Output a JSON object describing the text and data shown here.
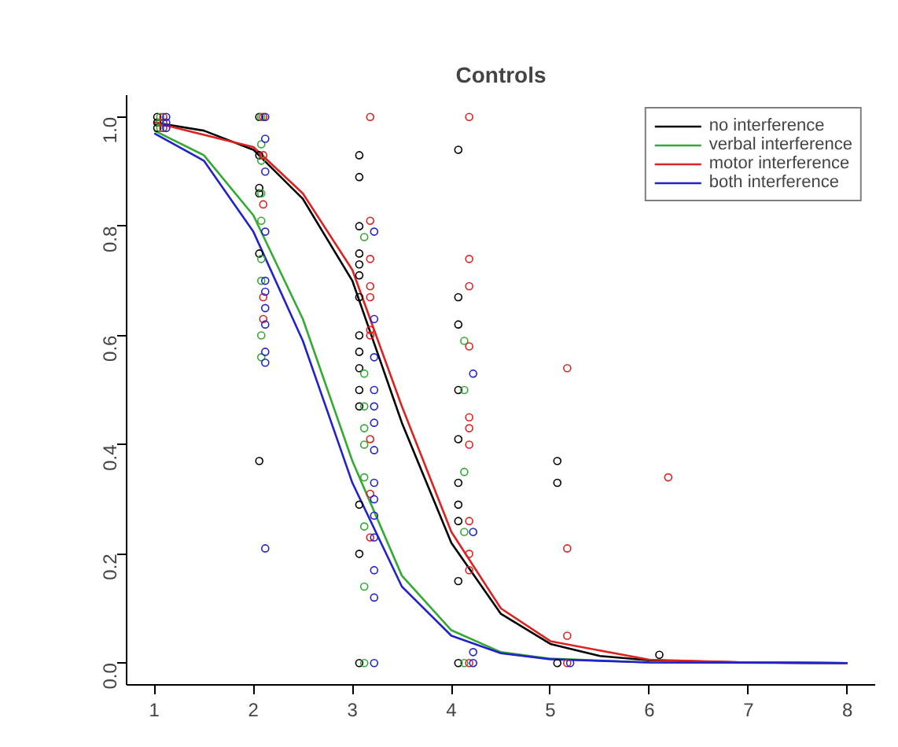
{
  "chart_data": {
    "type": "scatter",
    "title": "Controls",
    "xlim": [
      0.72,
      8.28
    ],
    "ylim": [
      -0.04,
      1.04
    ],
    "xticks": [
      1,
      2,
      3,
      4,
      5,
      6,
      7,
      8
    ],
    "yticks": [
      {
        "value": 0,
        "label": "0.0"
      },
      {
        "value": 0.2,
        "label": "0.2"
      },
      {
        "value": 0.4,
        "label": "0.4"
      },
      {
        "value": 0.6,
        "label": "0.6"
      },
      {
        "value": 0.8,
        "label": "0.8"
      },
      {
        "value": 1,
        "label": "1.0"
      }
    ],
    "grid": false,
    "legend": "top right",
    "marker": "circle",
    "series": [
      {
        "type": "line",
        "name": "no interference",
        "marker": "none",
        "color": "#000000",
        "x": [
          1,
          1.5,
          2,
          2.5,
          3,
          3.25,
          3.5,
          4,
          4.5,
          5,
          5.5,
          6,
          7,
          8
        ],
        "values": [
          0.99,
          0.975,
          0.94,
          0.85,
          0.7,
          0.57,
          0.44,
          0.22,
          0.09,
          0.035,
          0.013,
          0.005,
          0.001,
          0
        ]
      },
      {
        "type": "line",
        "name": "verbal interference",
        "marker": "none",
        "color": "#33aa33",
        "x": [
          1,
          1.5,
          2,
          2.5,
          3,
          3.5,
          4,
          4.5,
          5,
          6,
          8
        ],
        "values": [
          0.975,
          0.93,
          0.82,
          0.63,
          0.37,
          0.16,
          0.06,
          0.02,
          0.008,
          0.001,
          0
        ]
      },
      {
        "type": "line",
        "name": "motor interference",
        "marker": "none",
        "color": "#dd2222",
        "x": [
          1,
          2,
          2.5,
          3,
          3.5,
          4,
          4.5,
          5,
          6,
          7,
          8
        ],
        "values": [
          0.99,
          0.945,
          0.86,
          0.72,
          0.47,
          0.24,
          0.1,
          0.04,
          0.006,
          0.001,
          0
        ]
      },
      {
        "type": "line",
        "name": "both interference",
        "marker": "none",
        "color": "#2222cc",
        "x": [
          1,
          1.5,
          2,
          2.5,
          3,
          3.5,
          4,
          4.5,
          5,
          6,
          8
        ],
        "values": [
          0.97,
          0.92,
          0.79,
          0.59,
          0.33,
          0.14,
          0.05,
          0.018,
          0.007,
          0.001,
          0
        ]
      },
      {
        "color": "#000000",
        "x": [
          1.03,
          1.03,
          1.03,
          2.06,
          2.06,
          2.06,
          2.06,
          2.06,
          2.06,
          3.07,
          3.07,
          3.07,
          3.07,
          3.07,
          3.07,
          3.07,
          3.07,
          3.07,
          3.07,
          3.07,
          3.07,
          3.07,
          3.07,
          3.07,
          4.07,
          4.07,
          4.07,
          4.07,
          4.07,
          4.07,
          4.07,
          4.07,
          4.07,
          4.07,
          5.07,
          5.07,
          5.07,
          6.1
        ],
        "values": [
          1.0,
          0.99,
          0.98,
          1.0,
          0.93,
          0.87,
          0.86,
          0.75,
          0.37,
          0.93,
          0.89,
          0.8,
          0.75,
          0.73,
          0.71,
          0.67,
          0.6,
          0.57,
          0.54,
          0.5,
          0.47,
          0.29,
          0.2,
          0,
          0.94,
          0.67,
          0.62,
          0.5,
          0.41,
          0.33,
          0.29,
          0.26,
          0.15,
          0,
          0.37,
          0.33,
          0,
          0.015
        ]
      },
      {
        "color": "#33aa33",
        "x": [
          1.06,
          1.06,
          1.06,
          2.08,
          2.08,
          2.08,
          2.08,
          2.08,
          2.08,
          2.08,
          2.08,
          2.08,
          3.12,
          3.12,
          3.12,
          3.12,
          3.12,
          3.12,
          3.12,
          3.12,
          3.12,
          4.13,
          4.13,
          4.13,
          4.13,
          4.13
        ],
        "values": [
          1.0,
          0.99,
          0.98,
          1.0,
          0.95,
          0.92,
          0.86,
          0.81,
          0.74,
          0.7,
          0.6,
          0.56,
          0.78,
          0.53,
          0.47,
          0.43,
          0.4,
          0.34,
          0.25,
          0.14,
          0,
          0.59,
          0.5,
          0.35,
          0.24,
          0
        ]
      },
      {
        "color": "#dd2222",
        "x": [
          1.09,
          1.09,
          1.09,
          2.1,
          2.1,
          2.1,
          2.1,
          2.1,
          3.18,
          3.18,
          3.18,
          3.18,
          3.18,
          3.18,
          3.18,
          3.18,
          3.18,
          3.18,
          4.18,
          4.18,
          4.18,
          4.18,
          4.18,
          4.18,
          4.18,
          4.18,
          4.18,
          4.18,
          4.18,
          5.17,
          5.17,
          5.17,
          5.17,
          6.19
        ],
        "values": [
          1.0,
          0.99,
          0.98,
          1.0,
          0.93,
          0.84,
          0.67,
          0.63,
          1.0,
          0.81,
          0.74,
          0.69,
          0.67,
          0.61,
          0.6,
          0.41,
          0.31,
          0.23,
          1.0,
          0.74,
          0.69,
          0.58,
          0.45,
          0.43,
          0.4,
          0.26,
          0.2,
          0.17,
          0,
          0.54,
          0.21,
          0.05,
          0,
          0.34
        ]
      },
      {
        "color": "#2222cc",
        "x": [
          1.12,
          1.12,
          1.12,
          2.12,
          2.12,
          2.12,
          2.12,
          2.12,
          2.12,
          2.12,
          2.12,
          2.12,
          2.12,
          2.12,
          3.22,
          3.22,
          3.22,
          3.22,
          3.22,
          3.22,
          3.22,
          3.22,
          3.22,
          3.22,
          3.22,
          3.22,
          3.22,
          3.22,
          4.22,
          4.22,
          4.22,
          4.22,
          5.2
        ],
        "values": [
          1.0,
          0.99,
          0.98,
          1.0,
          0.96,
          0.9,
          0.79,
          0.7,
          0.68,
          0.65,
          0.62,
          0.57,
          0.55,
          0.21,
          0.79,
          0.63,
          0.56,
          0.5,
          0.47,
          0.44,
          0.39,
          0.33,
          0.3,
          0.27,
          0.23,
          0.17,
          0.12,
          0,
          0.53,
          0.24,
          0.02,
          0,
          0
        ]
      }
    ]
  }
}
